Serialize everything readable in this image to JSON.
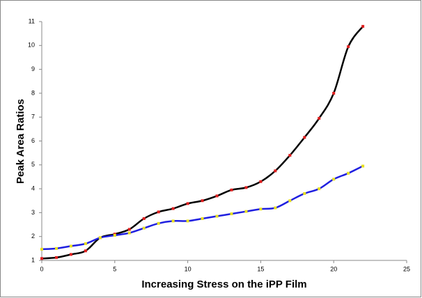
{
  "chart_data": {
    "type": "line",
    "x_label": "Increasing Stress on the iPP Film",
    "y_label": "Peak Area Ratios",
    "x": [
      0,
      1,
      2,
      3,
      4,
      5,
      6,
      7,
      8,
      9,
      10,
      11,
      12,
      13,
      14,
      15,
      16,
      17,
      18,
      19,
      20,
      21,
      22
    ],
    "series": [
      {
        "color": "#000000",
        "marker_color": "#e02020",
        "values": [
          1.08,
          1.12,
          1.25,
          1.4,
          1.95,
          2.1,
          2.3,
          2.75,
          3.03,
          3.17,
          3.38,
          3.5,
          3.7,
          3.95,
          4.05,
          4.3,
          4.75,
          5.4,
          6.15,
          6.95,
          8.0,
          9.95,
          10.8
        ]
      },
      {
        "color": "#1f1fe0",
        "marker_color": "#e8e020",
        "values": [
          1.47,
          1.5,
          1.6,
          1.7,
          1.95,
          2.05,
          2.15,
          2.35,
          2.55,
          2.65,
          2.65,
          2.75,
          2.85,
          2.95,
          3.05,
          3.15,
          3.2,
          3.5,
          3.8,
          4.0,
          4.4,
          4.65,
          4.95
        ]
      }
    ],
    "xlim": [
      0,
      25
    ],
    "xticks": [
      0,
      5,
      10,
      15,
      20,
      25
    ],
    "ylim": [
      1,
      11
    ],
    "yticks": [
      1,
      2,
      3,
      4,
      5,
      6,
      7,
      8,
      9,
      10,
      11
    ],
    "grid": false
  }
}
